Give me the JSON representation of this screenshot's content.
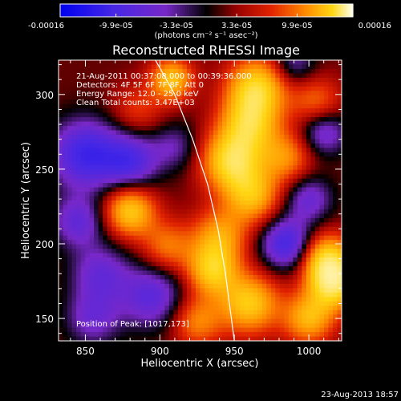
{
  "chart_data": {
    "type": "heatmap",
    "title": "Reconstructed RHESSI Image",
    "xlabel": "Heliocentric X (arcsec)",
    "ylabel": "Heliocentric Y (arcsec)",
    "xlim": [
      832,
      1022
    ],
    "ylim": [
      135,
      323
    ],
    "x_ticks": [
      "850",
      "900",
      "950",
      "1000"
    ],
    "x_tick_values": [
      850,
      900,
      950,
      1000
    ],
    "y_ticks": [
      "150",
      "200",
      "250",
      "300"
    ],
    "y_tick_values": [
      150,
      200,
      250,
      300
    ],
    "colorbar": {
      "range": [
        -0.00016,
        0.00016
      ],
      "ticks": [
        "-0.00016",
        "-9.9e-05",
        "-3.3e-05",
        "3.3e-05",
        "9.9e-05",
        "0.00016"
      ],
      "tick_values": [
        -0.00016,
        -9.9e-05,
        -3.3e-05,
        3.3e-05,
        9.9e-05,
        0.00016
      ],
      "units_text": "(photons cm⁻² s⁻¹ asec⁻²)",
      "colormap": "blue-purple-black-red-orange-yellow-white"
    },
    "annotations": [
      "21-Aug-2011 00:37:08.000 to 00:39:36.000",
      "Detectors: 4F 5F 6F 7F 8F, Att 0",
      "Energy Range: 12.0 - 25.0 keV",
      "Clean    Total counts: 3.47E+03"
    ],
    "peak_label": "Position of Peak:  [1017,173]",
    "peak_position": [
      1017,
      173
    ],
    "limb_curve": {
      "description": "solar limb",
      "points": [
        [
          897,
          323
        ],
        [
          910,
          300
        ],
        [
          922,
          270
        ],
        [
          932,
          240
        ],
        [
          939,
          210
        ],
        [
          944,
          180
        ],
        [
          948,
          150
        ],
        [
          950,
          135
        ]
      ]
    },
    "blobs": [
      {
        "x": 965,
        "y": 305,
        "amp": 1.0,
        "s": 14
      },
      {
        "x": 960,
        "y": 280,
        "amp": 0.9,
        "s": 14
      },
      {
        "x": 948,
        "y": 255,
        "amp": 1.05,
        "s": 14
      },
      {
        "x": 962,
        "y": 232,
        "amp": 0.8,
        "s": 13
      },
      {
        "x": 985,
        "y": 258,
        "amp": 0.6,
        "s": 12
      },
      {
        "x": 908,
        "y": 310,
        "amp": 0.9,
        "s": 10
      },
      {
        "x": 880,
        "y": 222,
        "amp": 0.95,
        "s": 12
      },
      {
        "x": 905,
        "y": 198,
        "amp": 0.55,
        "s": 12
      },
      {
        "x": 940,
        "y": 205,
        "amp": 0.7,
        "s": 13
      },
      {
        "x": 935,
        "y": 182,
        "amp": 0.9,
        "s": 12
      },
      {
        "x": 960,
        "y": 160,
        "amp": 0.95,
        "s": 14
      },
      {
        "x": 1012,
        "y": 190,
        "amp": 0.95,
        "s": 12
      },
      {
        "x": 1017,
        "y": 173,
        "amp": 1.1,
        "s": 12
      },
      {
        "x": 1000,
        "y": 150,
        "amp": 0.8,
        "s": 12
      },
      {
        "x": 925,
        "y": 148,
        "amp": 0.6,
        "s": 12
      },
      {
        "x": 1005,
        "y": 295,
        "amp": 0.5,
        "s": 12
      },
      {
        "x": 885,
        "y": 290,
        "amp": 0.35,
        "s": 12
      },
      {
        "x": 850,
        "y": 260,
        "amp": -0.85,
        "s": 16
      },
      {
        "x": 880,
        "y": 255,
        "amp": -0.7,
        "s": 13
      },
      {
        "x": 895,
        "y": 165,
        "amp": -0.6,
        "s": 15
      },
      {
        "x": 860,
        "y": 180,
        "amp": -0.5,
        "s": 14
      },
      {
        "x": 985,
        "y": 200,
        "amp": -0.8,
        "s": 12
      },
      {
        "x": 1000,
        "y": 230,
        "amp": -0.5,
        "s": 11
      },
      {
        "x": 1010,
        "y": 275,
        "amp": -0.55,
        "s": 11
      },
      {
        "x": 845,
        "y": 215,
        "amp": -0.55,
        "s": 12
      },
      {
        "x": 910,
        "y": 265,
        "amp": -0.35,
        "s": 11
      },
      {
        "x": 855,
        "y": 150,
        "amp": -0.45,
        "s": 13
      },
      {
        "x": 990,
        "y": 320,
        "amp": -0.4,
        "s": 10
      }
    ]
  },
  "footer": {
    "date": "23-Aug-2013 18:57"
  }
}
